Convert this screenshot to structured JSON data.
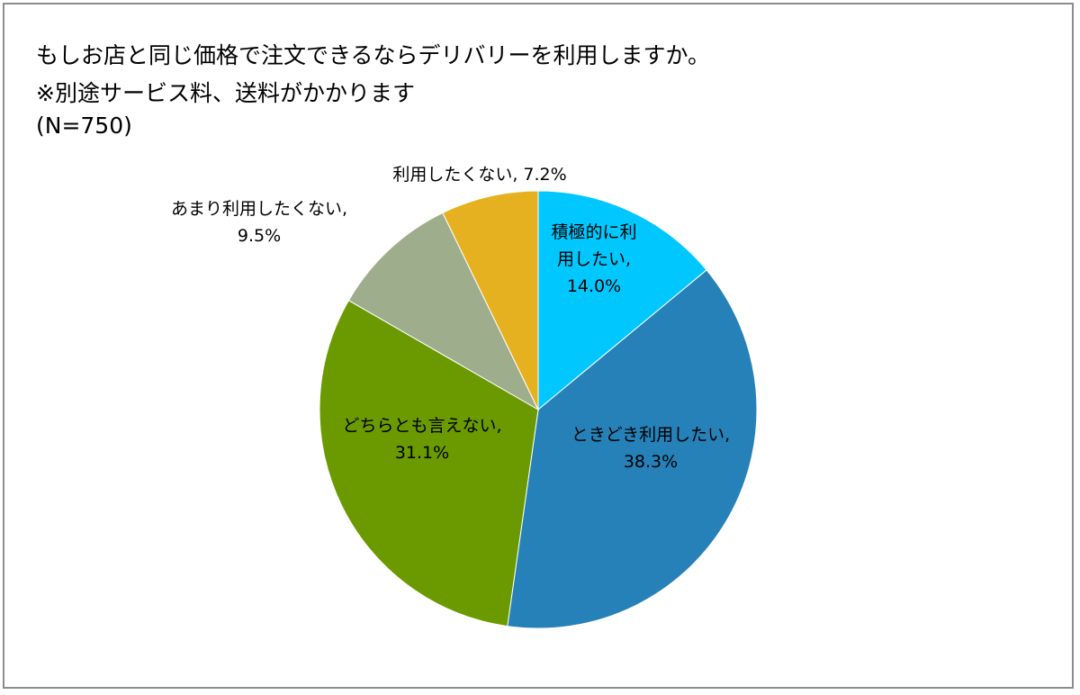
{
  "chart_data": {
    "type": "pie",
    "title": "もしお店と同じ価格で注文できるならデリバリーを利用しますか。",
    "subtitle": "※別途サービス料、送料がかかります",
    "note": "(N=750)",
    "slices": [
      {
        "label": "積極的に利用したい",
        "value": 14.0,
        "value_label": "14.0%",
        "color": "#00c8ff",
        "label_lines": [
          "積極的に利",
          "用したい,",
          "14.0%"
        ]
      },
      {
        "label": "ときどき利用したい",
        "value": 38.3,
        "value_label": "38.3%",
        "color": "#2581b8",
        "label_lines": [
          "ときどき利用したい,",
          "38.3%"
        ]
      },
      {
        "label": "どちらとも言えない",
        "value": 31.1,
        "value_label": "31.1%",
        "color": "#6a9a00",
        "label_lines": [
          "どちらとも言えない,",
          "31.1%"
        ]
      },
      {
        "label": "あまり利用したくない",
        "value": 9.5,
        "value_label": "9.5%",
        "color": "#9eae8c",
        "label_lines": [
          "あまり利用したくない,",
          "9.5%"
        ]
      },
      {
        "label": "利用したくない",
        "value": 7.2,
        "value_label": "7.2%",
        "color": "#e6b120",
        "label_lines": [
          "利用したくない, 7.2%"
        ]
      }
    ],
    "start_angle_deg": 0,
    "direction": "clockwise",
    "legend": "none"
  }
}
